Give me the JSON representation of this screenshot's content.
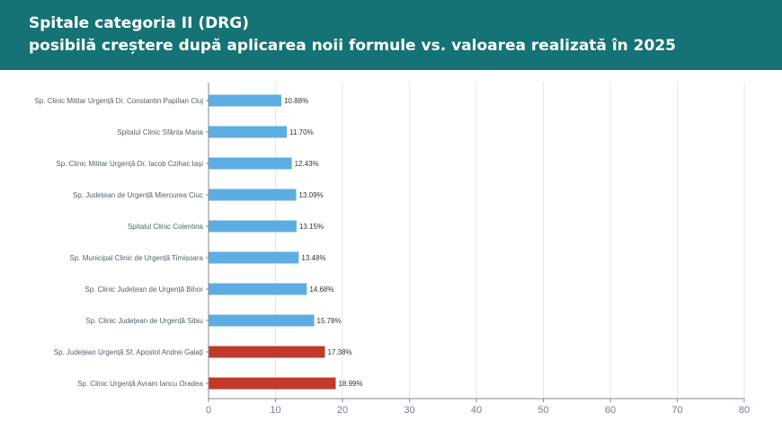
{
  "header": {
    "title_line1": "Spitale categoria II (DRG)",
    "title_line2": "posibilă creștere după aplicarea noii formule vs. valoarea realizată în 2025"
  },
  "colors": {
    "header_bg": "#157275",
    "bar_default": "#5dade2",
    "bar_highlight": "#c0392b",
    "grid": "#e6e6e6",
    "axis": "#888888"
  },
  "chart_data": {
    "type": "bar",
    "orientation": "horizontal",
    "categories": [
      "Sp. Clinic Militar Urgență Dr. Constantin Papilian Cluj",
      "Spitalul Clinic Sfânta Maria",
      "Sp. Clinic Militar Urgență Dr. Iacob Czihac Iași",
      "Sp. Județean de Urgență Miercurea Ciuc",
      "Spitalul Clinic Colentina",
      "Sp. Municipal Clinic de Urgență Timișoara",
      "Sp. Clinic Județean de Urgență Bihor",
      "Sp. Clinic Județean de Urgență Sibiu",
      "Sp. Județean Urgență Sf. Apostol Andrei Galați",
      "Sp. Clinic Urgență Avram Iancu Oradea"
    ],
    "values": [
      10.88,
      11.7,
      12.43,
      13.09,
      13.15,
      13.48,
      14.68,
      15.78,
      17.38,
      18.99
    ],
    "value_labels": [
      "10.88%",
      "11.70%",
      "12.43%",
      "13.09%",
      "13.15%",
      "13.48%",
      "14.68%",
      "15.78%",
      "17.38%",
      "18.99%"
    ],
    "highlighted": [
      false,
      false,
      false,
      false,
      false,
      false,
      false,
      false,
      true,
      true
    ],
    "xlim": [
      0,
      80
    ],
    "xticks": [
      0,
      10,
      20,
      30,
      40,
      50,
      60,
      70,
      80
    ],
    "grid": true
  }
}
